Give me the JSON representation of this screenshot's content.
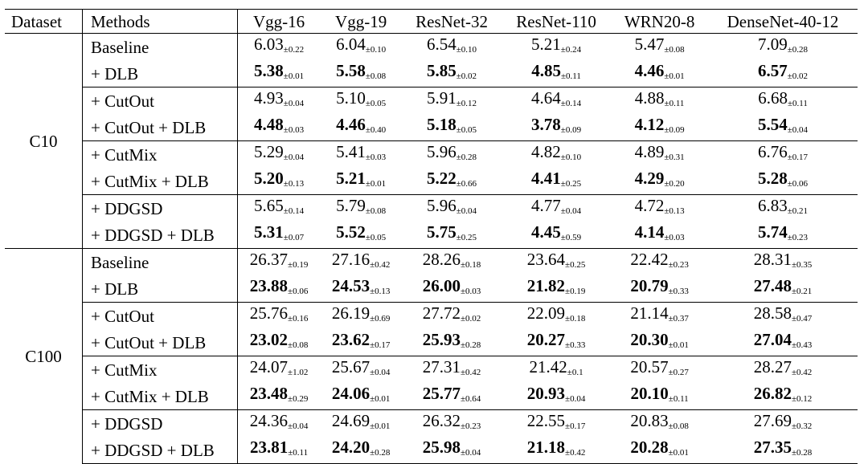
{
  "table": {
    "headers": [
      "Dataset",
      "Methods",
      "Vgg-16",
      "Vgg-19",
      "ResNet-32",
      "ResNet-110",
      "WRN20-8",
      "DenseNet-40-12"
    ],
    "blocks": [
      {
        "dataset": "C10",
        "rows": [
          {
            "method": "Baseline",
            "bold": false,
            "values": [
              [
                "6.03",
                "±0.22"
              ],
              [
                "6.04",
                "±0.10"
              ],
              [
                "6.54",
                "±0.10"
              ],
              [
                "5.21",
                "±0.24"
              ],
              [
                "5.47",
                "±0.08"
              ],
              [
                "7.09",
                "±0.28"
              ]
            ]
          },
          {
            "method": "+ DLB",
            "bold": true,
            "values": [
              [
                "5.38",
                "±0.01"
              ],
              [
                "5.58",
                "±0.08"
              ],
              [
                "5.85",
                "±0.02"
              ],
              [
                "4.85",
                "±0.11"
              ],
              [
                "4.46",
                "±0.01"
              ],
              [
                "6.57",
                "±0.02"
              ]
            ]
          },
          {
            "method": "+ CutOut",
            "bold": false,
            "values": [
              [
                "4.93",
                "±0.04"
              ],
              [
                "5.10",
                "±0.05"
              ],
              [
                "5.91",
                "±0.12"
              ],
              [
                "4.64",
                "±0.14"
              ],
              [
                "4.88",
                "±0.11"
              ],
              [
                "6.68",
                "±0.11"
              ]
            ]
          },
          {
            "method": "+ CutOut + DLB",
            "bold": true,
            "values": [
              [
                "4.48",
                "±0.03"
              ],
              [
                "4.46",
                "±0.40"
              ],
              [
                "5.18",
                "±0.05"
              ],
              [
                "3.78",
                "±0.09"
              ],
              [
                "4.12",
                "±0.09"
              ],
              [
                "5.54",
                "±0.04"
              ]
            ]
          },
          {
            "method": "+ CutMix",
            "bold": false,
            "values": [
              [
                "5.29",
                "±0.04"
              ],
              [
                "5.41",
                "±0.03"
              ],
              [
                "5.96",
                "±0.28"
              ],
              [
                "4.82",
                "±0.10"
              ],
              [
                "4.89",
                "±0.31"
              ],
              [
                "6.76",
                "±0.17"
              ]
            ]
          },
          {
            "method": "+ CutMix + DLB",
            "bold": true,
            "values": [
              [
                "5.20",
                "±0.13"
              ],
              [
                "5.21",
                "±0.01"
              ],
              [
                "5.22",
                "±0.66"
              ],
              [
                "4.41",
                "±0.25"
              ],
              [
                "4.29",
                "±0.20"
              ],
              [
                "5.28",
                "±0.06"
              ]
            ]
          },
          {
            "method": "+ DDGSD",
            "bold": false,
            "values": [
              [
                "5.65",
                "±0.14"
              ],
              [
                "5.79",
                "±0.08"
              ],
              [
                "5.96",
                "±0.04"
              ],
              [
                "4.77",
                "±0.04"
              ],
              [
                "4.72",
                "±0.13"
              ],
              [
                "6.83",
                "±0.21"
              ]
            ]
          },
          {
            "method": "+ DDGSD + DLB",
            "bold": true,
            "values": [
              [
                "5.31",
                "±0.07"
              ],
              [
                "5.52",
                "±0.05"
              ],
              [
                "5.75",
                "±0.25"
              ],
              [
                "4.45",
                "±0.59"
              ],
              [
                "4.14",
                "±0.03"
              ],
              [
                "5.74",
                "±0.23"
              ]
            ]
          }
        ]
      },
      {
        "dataset": "C100",
        "rows": [
          {
            "method": "Baseline",
            "bold": false,
            "values": [
              [
                "26.37",
                "±0.19"
              ],
              [
                "27.16",
                "±0.42"
              ],
              [
                "28.26",
                "±0.18"
              ],
              [
                "23.64",
                "±0.25"
              ],
              [
                "22.42",
                "±0.23"
              ],
              [
                "28.31",
                "±0.35"
              ]
            ]
          },
          {
            "method": "+ DLB",
            "bold": true,
            "values": [
              [
                "23.88",
                "±0.06"
              ],
              [
                "24.53",
                "±0.13"
              ],
              [
                "26.00",
                "±0.03"
              ],
              [
                "21.82",
                "±0.19"
              ],
              [
                "20.79",
                "±0.33"
              ],
              [
                "27.48",
                "±0.21"
              ]
            ]
          },
          {
            "method": "+ CutOut",
            "bold": false,
            "values": [
              [
                "25.76",
                "±0.16"
              ],
              [
                "26.19",
                "±0.69"
              ],
              [
                "27.72",
                "±0.02"
              ],
              [
                "22.09",
                "±0.18"
              ],
              [
                "21.14",
                "±0.37"
              ],
              [
                "28.58",
                "±0.47"
              ]
            ]
          },
          {
            "method": "+ CutOut + DLB",
            "bold": true,
            "values": [
              [
                "23.02",
                "±0.08"
              ],
              [
                "23.62",
                "±0.17"
              ],
              [
                "25.93",
                "±0.28"
              ],
              [
                "20.27",
                "±0.33"
              ],
              [
                "20.30",
                "±0.01"
              ],
              [
                "27.04",
                "±0.43"
              ]
            ]
          },
          {
            "method": "+ CutMix",
            "bold": false,
            "values": [
              [
                "24.07",
                "±1.02"
              ],
              [
                "25.67",
                "±0.04"
              ],
              [
                "27.31",
                "±0.42"
              ],
              [
                "21.42",
                "±0.1"
              ],
              [
                "20.57",
                "±0.27"
              ],
              [
                "28.27",
                "±0.42"
              ]
            ]
          },
          {
            "method": "+ CutMix + DLB",
            "bold": true,
            "values": [
              [
                "23.48",
                "±0.29"
              ],
              [
                "24.06",
                "±0.01"
              ],
              [
                "25.77",
                "±0.64"
              ],
              [
                "20.93",
                "±0.04"
              ],
              [
                "20.10",
                "±0.11"
              ],
              [
                "26.82",
                "±0.12"
              ]
            ]
          },
          {
            "method": "+ DDGSD",
            "bold": false,
            "values": [
              [
                "24.36",
                "±0.04"
              ],
              [
                "24.69",
                "±0.01"
              ],
              [
                "26.32",
                "±0.23"
              ],
              [
                "22.55",
                "±0.17"
              ],
              [
                "20.83",
                "±0.08"
              ],
              [
                "27.69",
                "±0.32"
              ]
            ]
          },
          {
            "method": "+ DDGSD + DLB",
            "bold": true,
            "values": [
              [
                "23.81",
                "±0.11"
              ],
              [
                "24.20",
                "±0.28"
              ],
              [
                "25.98",
                "±0.04"
              ],
              [
                "21.18",
                "±0.42"
              ],
              [
                "20.28",
                "±0.01"
              ],
              [
                "27.35",
                "±0.28"
              ]
            ]
          }
        ]
      }
    ]
  }
}
